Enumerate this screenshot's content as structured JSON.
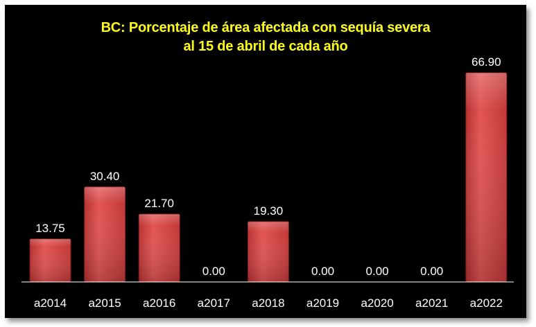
{
  "chart_data": {
    "type": "bar",
    "title_lines": [
      "BC: Porcentaje de área afectada con sequía severa",
      "al 15 de abril de cada año"
    ],
    "categories": [
      "a2014",
      "a2015",
      "a2016",
      "a2017",
      "a2018",
      "a2019",
      "a2020",
      "a2021",
      "a2022"
    ],
    "values": [
      13.75,
      30.4,
      21.7,
      0.0,
      19.3,
      0.0,
      0.0,
      0.0,
      66.9
    ],
    "value_labels": [
      "13.75",
      "30.40",
      "21.70",
      "0.00",
      "19.30",
      "0.00",
      "0.00",
      "0.00",
      "66.90"
    ],
    "ylim": [
      0,
      66.9
    ],
    "grid": false,
    "legend": "none",
    "xlabel": "",
    "ylabel": ""
  },
  "colors": {
    "background": "#000000",
    "title": "#ffff1a",
    "bar_top": "#e85a5a",
    "bar_bottom": "#b02a2a",
    "bar_edge": "#7a1515",
    "axis": "#ffffff",
    "text": "#ffffff"
  }
}
